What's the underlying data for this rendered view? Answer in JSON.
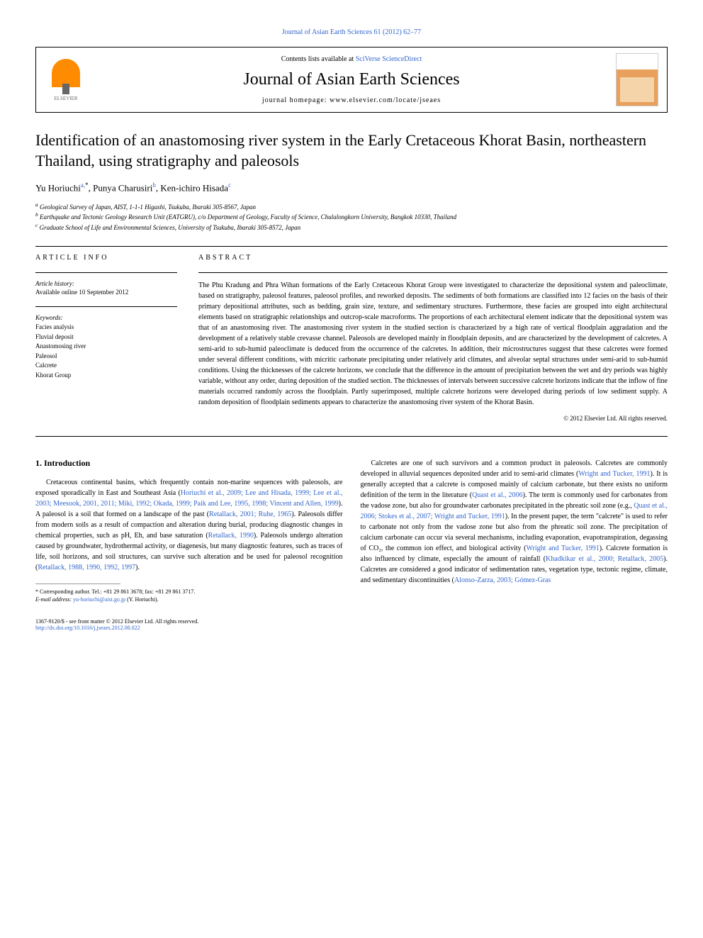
{
  "journal_ref": "Journal of Asian Earth Sciences 61 (2012) 62–77",
  "header": {
    "contents_prefix": "Contents lists available at ",
    "contents_link": "SciVerse ScienceDirect",
    "journal_title": "Journal of Asian Earth Sciences",
    "homepage_prefix": "journal homepage: ",
    "homepage_url": "www.elsevier.com/locate/jseaes",
    "publisher": "ELSEVIER"
  },
  "title": "Identification of an anastomosing river system in the Early Cretaceous Khorat Basin, northeastern Thailand, using stratigraphy and paleosols",
  "authors": {
    "a1_name": "Yu Horiuchi",
    "a1_aff": "a,",
    "a1_corr": "*",
    "a2_name": "Punya Charusiri",
    "a2_aff": "b",
    "a3_name": "Ken-ichiro Hisada",
    "a3_aff": "c"
  },
  "affiliations": {
    "a": "Geological Survey of Japan, AIST, 1-1-1 Higashi, Tsukuba, Ibaraki 305-8567, Japan",
    "b": "Earthquake and Tectonic Geology Research Unit (EATGRU), c/o Department of Geology, Faculty of Science, Chulalongkorn University, Bangkok 10330, Thailand",
    "c": "Graduate School of Life and Environmental Sciences, University of Tsukuba, Ibaraki 305-8572, Japan"
  },
  "article_info": {
    "heading": "ARTICLE INFO",
    "history_label": "Article history:",
    "history_text": "Available online 10 September 2012",
    "keywords_label": "Keywords:",
    "keywords": [
      "Facies analysis",
      "Fluvial deposit",
      "Anastomosing river",
      "Paleosol",
      "Calcrete",
      "Khorat Group"
    ]
  },
  "abstract": {
    "heading": "ABSTRACT",
    "text": "The Phu Kradung and Phra Wihan formations of the Early Cretaceous Khorat Group were investigated to characterize the depositional system and paleoclimate, based on stratigraphy, paleosol features, paleosol profiles, and reworked deposits. The sediments of both formations are classified into 12 facies on the basis of their primary depositional attributes, such as bedding, grain size, texture, and sedimentary structures. Furthermore, these facies are grouped into eight architectural elements based on stratigraphic relationships and outcrop-scale macroforms. The proportions of each architectural element indicate that the depositional system was that of an anastomosing river. The anastomosing river system in the studied section is characterized by a high rate of vertical floodplain aggradation and the development of a relatively stable crevasse channel. Paleosols are developed mainly in floodplain deposits, and are characterized by the development of calcretes. A semi-arid to sub-humid paleoclimate is deduced from the occurrence of the calcretes. In addition, their microstructures suggest that these calcretes were formed under several different conditions, with micritic carbonate precipitating under relatively arid climates, and alveolar septal structures under semi-arid to sub-humid conditions. Using the thicknesses of the calcrete horizons, we conclude that the difference in the amount of precipitation between the wet and dry periods was highly variable, without any order, during deposition of the studied section. The thicknesses of intervals between successive calcrete horizons indicate that the inflow of fine materials occurred randomly across the floodplain. Partly superimposed, multiple calcrete horizons were developed during periods of low sediment supply. A random deposition of floodplain sediments appears to characterize the anastomosing river system of the Khorat Basin.",
    "copyright": "© 2012 Elsevier Ltd. All rights reserved."
  },
  "body": {
    "section1_heading": "1. Introduction",
    "col1_p1_a": "Cretaceous continental basins, which frequently contain non-marine sequences with paleosols, are exposed sporadically in East and Southeast Asia (",
    "col1_cite1": "Horiuchi et al., 2009; Lee and Hisada, 1999; Lee et al., 2003; Meesook, 2001, 2011; Miki, 1992; Okada, 1999; Paik and Lee, 1995, 1998; Vincent and Allen, 1999",
    "col1_p1_b": "). A paleosol is a soil that formed on a landscape of the past (",
    "col1_cite2": "Retallack, 2001; Ruhe, 1965",
    "col1_p1_c": "). Paleosols differ from modern soils as a result of compaction and alteration during burial, producing diagnostic changes in chemical properties, such as pH, Eh, and base saturation (",
    "col1_cite3": "Retallack, 1990",
    "col1_p1_d": "). Paleosols undergo alteration caused by groundwater, hydrothermal activity, or diagenesis, but many diagnostic features, such as traces of life, soil horizons, and soil structures, can survive such alteration and be used for paleosol recognition (",
    "col1_cite4": "Retallack, 1988, 1990, 1992, 1997",
    "col1_p1_e": ").",
    "col2_p1_a": "Calcretes are one of such survivors and a common product in paleosols. Calcretes are commonly developed in alluvial sequences deposited under arid to semi-arid climates (",
    "col2_cite1": "Wright and Tucker, 1991",
    "col2_p1_b": "). It is generally accepted that a calcrete is composed mainly of calcium carbonate, but there exists no uniform definition of the term in the literature (",
    "col2_cite2": "Quast et al., 2006",
    "col2_p1_c": "). The term is commonly used for carbonates from the vadose zone, but also for groundwater carbonates precipitated in the phreatic soil zone (e.g., ",
    "col2_cite3": "Quast et al., 2006; Stokes et al., 2007; Wright and Tucker, 1991",
    "col2_p1_d": "). In the present paper, the term \"calcrete\" is used to refer to carbonate not only from the vadose zone but also from the phreatic soil zone. The precipitation of calcium carbonate can occur via several mechanisms, including evaporation, evapotranspiration, degassing of CO₂, the common ion effect, and biological activity (",
    "col2_cite4": "Wright and Tucker, 1991",
    "col2_p1_e": "). Calcrete formation is also influenced by climate, especially the amount of rainfall (",
    "col2_cite5": "Khadkikar et al., 2000; Retallack, 2005",
    "col2_p1_f": "). Calcretes are considered a good indicator of sedimentation rates, vegetation type, tectonic regime, climate, and sedimentary discontinuities (",
    "col2_cite6": "Alonso-Zarza, 2003; Gómez-Gras"
  },
  "footnote": {
    "corr_label": "* Corresponding author. Tel.: +81 29 861 3678; fax: +81 29 861 3717.",
    "email_label": "E-mail address: ",
    "email": "yu-horiuchi@aist.go.jp",
    "email_suffix": " (Y. Horiuchi)."
  },
  "bottom": {
    "issn": "1367-9120/$ - see front matter © 2012 Elsevier Ltd. All rights reserved.",
    "doi": "http://dx.doi.org/10.1016/j.jseaes.2012.08.022"
  }
}
